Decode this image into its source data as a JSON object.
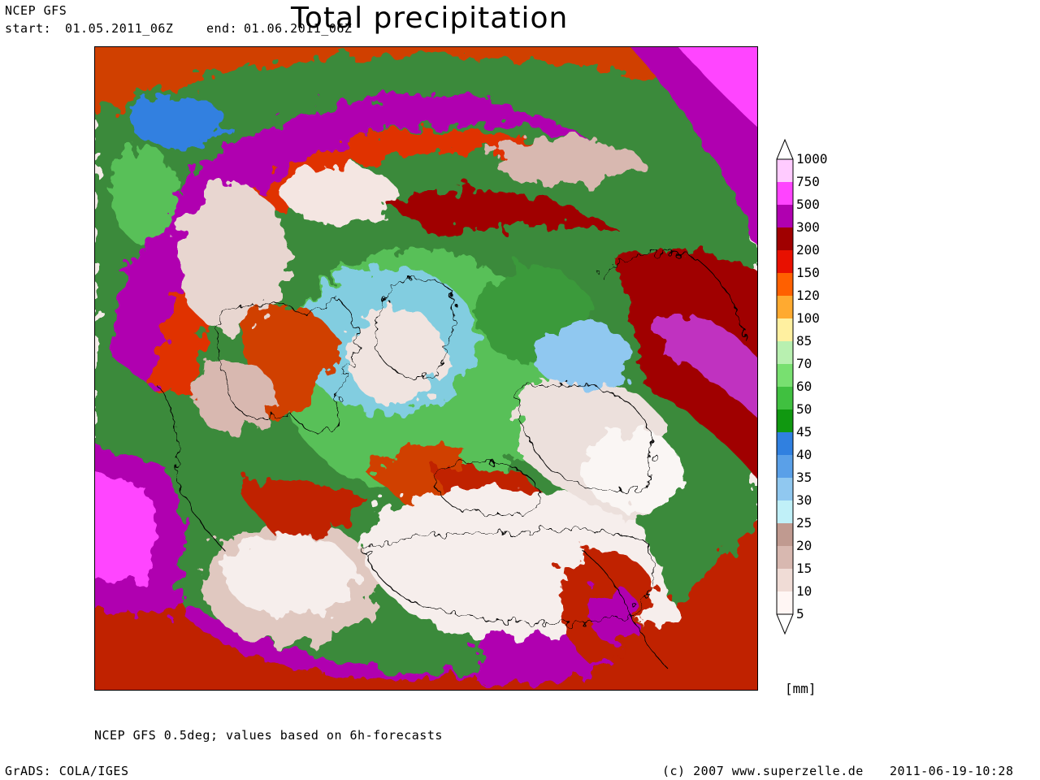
{
  "header": {
    "model": "NCEP GFS",
    "start_label": "start:",
    "start": "01.05.2011_06Z",
    "end_label": "end:",
    "end": "01.06.2011_06Z",
    "title": "Total precipitation"
  },
  "legend": {
    "units": "[mm]",
    "levels": [
      "1000",
      "750",
      "500",
      "300",
      "200",
      "150",
      "120",
      "100",
      "85",
      "70",
      "60",
      "50",
      "45",
      "40",
      "35",
      "30",
      "25",
      "20",
      "15",
      "10",
      "5"
    ],
    "colors": [
      "#ffcbff",
      "#ff44ff",
      "#b000b0",
      "#a00000",
      "#e81000",
      "#ff6000",
      "#ffaa30",
      "#fff0a0",
      "#b8f0b0",
      "#78e070",
      "#40c040",
      "#109810",
      "#3080e0",
      "#5aa0e8",
      "#90c8f0",
      "#c0f0f8",
      "#c09a90",
      "#d8b8b0",
      "#f0dcd6",
      "#fff6f4"
    ]
  },
  "footer": {
    "source_note": "NCEP GFS 0.5deg; values based on 6h-forecasts",
    "software": "GrADS: COLA/IGES",
    "copyright": "(c) 2007 www.superzelle.de",
    "timestamp": "2011-06-19-10:28"
  }
}
